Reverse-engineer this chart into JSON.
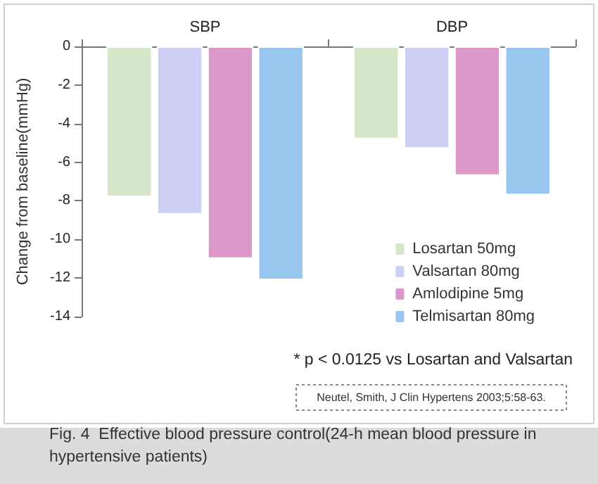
{
  "chart_data": {
    "type": "bar",
    "title": "Fig. 4  Effective blood pressure control(24-h mean blood pressure in hypertensive patients)",
    "ylabel": "Change from baseline(mmHg)",
    "categories": [
      "SBP",
      "DBP"
    ],
    "series": [
      {
        "name": "Losartan 50mg",
        "color": "#d6e6c8",
        "values": [
          -7.8,
          -4.8
        ]
      },
      {
        "name": "Valsartan 80mg",
        "color": "#cdd0f4",
        "values": [
          -8.7,
          -5.3
        ]
      },
      {
        "name": "Amlodipine 5mg",
        "color": "#dc98c8",
        "values": [
          -11,
          -6.7
        ]
      },
      {
        "name": "Telmisartan 80mg",
        "color": "#98c6ee",
        "values": [
          -12.1,
          -7.7
        ]
      }
    ],
    "ylim": [
      -14,
      0
    ],
    "yticks": [
      -14,
      -12,
      -10,
      -8,
      -6,
      -4,
      -2,
      0
    ],
    "grid": false,
    "legend": "bottom right",
    "annotations": [
      "* p < 0.0125 vs Losartan and Valsartan",
      "Neutel, Smith, J Clin Hypertens 2003;5:58-63."
    ]
  }
}
